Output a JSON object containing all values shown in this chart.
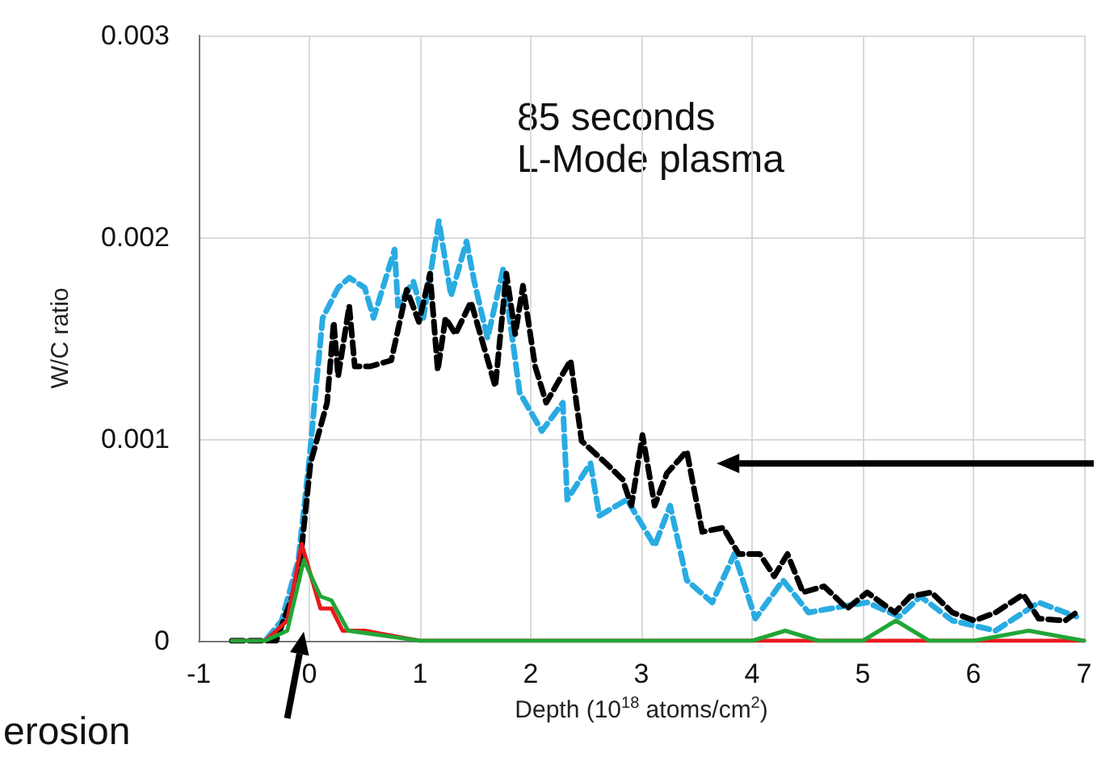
{
  "chart_data": {
    "type": "line",
    "xlabel": "Depth (10$^{18}$ atoms/cm$^{2}$)",
    "ylabel": "W/C ratio",
    "annotations": [
      "85 seconds",
      "L-Mode plasma",
      "erosion"
    ],
    "xlim": [
      -1,
      7
    ],
    "xticks": [
      -1,
      0,
      1,
      2,
      3,
      4,
      5,
      6,
      7
    ],
    "ylim": [
      0,
      0.003
    ],
    "yticks": [
      0,
      0.001,
      0.002,
      0.003
    ],
    "grid": true,
    "marker": "none",
    "series": [
      {
        "color": "#29abe2",
        "line_style": "dashed",
        "x": [
          -0.7,
          -0.4,
          -0.25,
          -0.1,
          0,
          0.05,
          0.12,
          0.26,
          0.36,
          0.5,
          0.58,
          0.77,
          0.8,
          0.94,
          1.03,
          1.17,
          1.28,
          1.42,
          1.49,
          1.61,
          1.75,
          1.9,
          2.1,
          2.29,
          2.33,
          2.54,
          2.62,
          2.87,
          3.12,
          3.26,
          3.41,
          3.64,
          3.84,
          4.03,
          4.28,
          4.51,
          4.71,
          5.04,
          5.33,
          5.52,
          5.81,
          6.2,
          6.59,
          6.93
        ],
        "values": [
          0,
          0,
          0.0001,
          0.0004,
          0.0009,
          0.0012,
          0.0016,
          0.00175,
          0.0018,
          0.00175,
          0.0016,
          0.00194,
          0.00166,
          0.00178,
          0.0016,
          0.00208,
          0.00171,
          0.00198,
          0.00178,
          0.0015,
          0.00184,
          0.00123,
          0.00104,
          0.00118,
          0.0007,
          0.00088,
          0.00062,
          0.0007,
          0.00047,
          0.00067,
          0.0003,
          0.00019,
          0.00043,
          0.00011,
          0.0003,
          0.00014,
          0.00016,
          0.00019,
          0.00012,
          0.00022,
          0.0001,
          5e-05,
          0.00019,
          0.00012
        ]
      },
      {
        "color": "#000000",
        "line_style": "dashed",
        "x": [
          -0.7,
          -0.3,
          -0.1,
          0.01,
          0.16,
          0.22,
          0.26,
          0.36,
          0.41,
          0.55,
          0.74,
          0.88,
          0.99,
          1.09,
          1.16,
          1.23,
          1.32,
          1.46,
          1.68,
          1.78,
          1.86,
          1.93,
          2.04,
          2.14,
          2.36,
          2.46,
          2.68,
          2.83,
          2.91,
          3.01,
          3.12,
          3.23,
          3.41,
          3.55,
          3.74,
          3.88,
          4.07,
          4.2,
          4.32,
          4.46,
          4.65,
          4.86,
          5.04,
          5.29,
          5.43,
          5.62,
          5.81,
          6.01,
          6.2,
          6.45,
          6.59,
          6.83,
          6.93
        ],
        "values": [
          0,
          0,
          0.0003,
          0.00088,
          0.00118,
          0.00158,
          0.00131,
          0.00166,
          0.00136,
          0.00136,
          0.00139,
          0.00174,
          0.00158,
          0.00182,
          0.00134,
          0.0016,
          0.00152,
          0.00168,
          0.00126,
          0.00182,
          0.00152,
          0.00176,
          0.00136,
          0.00118,
          0.00139,
          0.00099,
          0.00088,
          0.0008,
          0.00067,
          0.00102,
          0.00067,
          0.00083,
          0.00094,
          0.00054,
          0.00056,
          0.00043,
          0.00043,
          0.00032,
          0.00043,
          0.00024,
          0.00027,
          0.00016,
          0.00024,
          0.00014,
          0.00022,
          0.00024,
          0.00014,
          0.0001,
          0.00014,
          0.00023,
          0.00011,
          0.0001,
          0.00014
        ]
      },
      {
        "color": "#e8191c",
        "line_style": "solid",
        "x": [
          -0.7,
          -0.4,
          -0.2,
          -0.07,
          0.1,
          0.2,
          0.3,
          0.5,
          1,
          2,
          3,
          4,
          5,
          5.5,
          6,
          6.5,
          7
        ],
        "values": [
          0,
          0,
          0.0001,
          0.00048,
          0.00016,
          0.00016,
          5e-05,
          5e-05,
          0,
          0,
          0,
          0,
          0,
          0,
          0,
          0,
          0
        ]
      },
      {
        "color": "#21a637",
        "line_style": "solid",
        "x": [
          -0.7,
          -0.4,
          -0.2,
          -0.05,
          0.1,
          0.2,
          0.35,
          1,
          2,
          3,
          4,
          4.3,
          4.6,
          5,
          5.3,
          5.6,
          6,
          6.5,
          7
        ],
        "values": [
          0,
          0,
          5e-05,
          0.0004,
          0.00022,
          0.0002,
          5e-05,
          0,
          0,
          0,
          0,
          5e-05,
          0,
          0,
          0.0001,
          0,
          0,
          5e-05,
          0
        ]
      }
    ]
  }
}
